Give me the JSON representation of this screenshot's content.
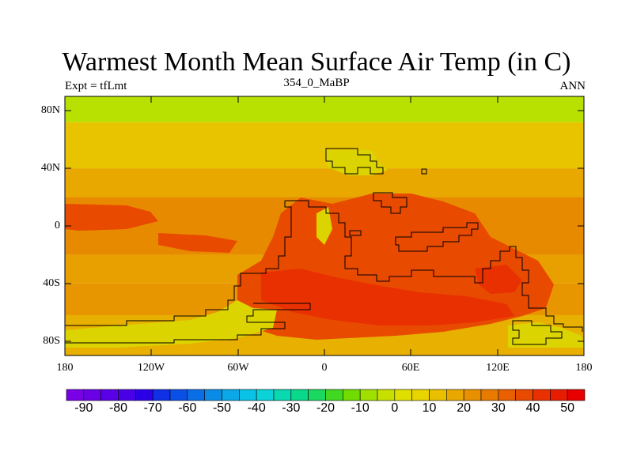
{
  "title": "Warmest Month Mean Surface Air Temp (in C)",
  "subtitle_left": "Expt = tfLmt",
  "subtitle_center": "354_0_MaBP",
  "subtitle_right": "ANN",
  "y_ticks": [
    "80N",
    "40N",
    "0",
    "40S",
    "80S"
  ],
  "x_ticks": [
    "180",
    "120W",
    "60W",
    "0",
    "60E",
    "120E",
    "180"
  ],
  "colorbar": {
    "labels": [
      "-90",
      "-80",
      "-70",
      "-60",
      "-50",
      "-40",
      "-30",
      "-20",
      "-10",
      "0",
      "10",
      "20",
      "30",
      "40",
      "50"
    ],
    "colors": [
      "#7a00e6",
      "#6a00e6",
      "#5a00e6",
      "#4a00e6",
      "#2c00e6",
      "#1030e6",
      "#0a50e6",
      "#0a6ee6",
      "#0a8ce6",
      "#0aa8e6",
      "#0ac2e6",
      "#0ad2d8",
      "#0ad8b0",
      "#0ad88a",
      "#1ad860",
      "#40d820",
      "#70dc00",
      "#a0e000",
      "#c8e000",
      "#e0e000",
      "#e8d400",
      "#e8c000",
      "#e8a800",
      "#e89000",
      "#e87a00",
      "#e86000",
      "#e84a00",
      "#e83000",
      "#e81c00",
      "#e80000"
    ]
  },
  "map": {
    "bands": [
      {
        "lat_top": 90,
        "lat_bottom": 72,
        "color": "#b8e000"
      },
      {
        "lat_top": 72,
        "lat_bottom": 40,
        "color": "#e8c400"
      },
      {
        "lat_top": 40,
        "lat_bottom": 20,
        "color": "#e8a800"
      },
      {
        "lat_top": 20,
        "lat_bottom": -20,
        "color": "#e88a00"
      },
      {
        "lat_top": -20,
        "lat_bottom": -40,
        "color": "#e8a000"
      },
      {
        "lat_top": -40,
        "lat_bottom": -62,
        "color": "#e89600"
      },
      {
        "lat_top": -62,
        "lat_bottom": -90,
        "color": "#e8b000"
      }
    ],
    "hot_color": "#e84a00",
    "hotter_color": "#e83000",
    "cool_land_color": "#dcd400"
  }
}
